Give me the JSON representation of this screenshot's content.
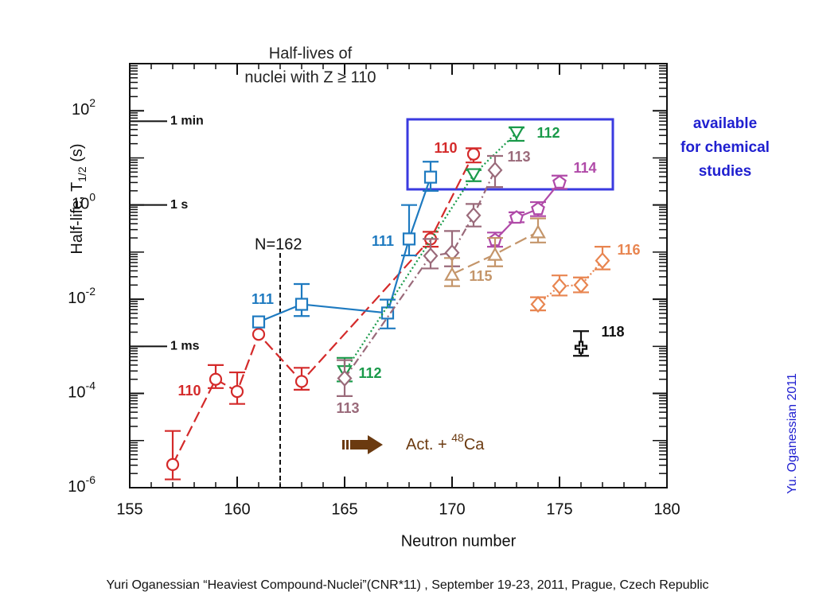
{
  "chart_data": {
    "type": "line",
    "log_y": true,
    "title": [
      "Half-lives of",
      "nuclei with Z ≥ 110"
    ],
    "x_label": "Neutron number",
    "y_label": {
      "text": "Half-life,  T",
      "sub": "1/2",
      "unit": " (s)"
    },
    "xlim": [
      155,
      180
    ],
    "xticks": [
      155,
      160,
      165,
      170,
      175,
      180
    ],
    "ylim": [
      1e-06,
      1000
    ],
    "yticks": [
      {
        "value": 1e-06,
        "label": "10",
        "exponent": "-6"
      },
      {
        "value": 0.0001,
        "label": "10",
        "exponent": "-4"
      },
      {
        "value": 0.01,
        "label": "10",
        "exponent": "-2"
      },
      {
        "value": 1,
        "label": "10",
        "exponent": "0"
      },
      {
        "value": 100,
        "label": "10",
        "exponent": "2"
      }
    ],
    "time_marks": [
      {
        "value": 60,
        "label": "1 min"
      },
      {
        "value": 1,
        "label": "1 s"
      },
      {
        "value": 0.001,
        "label": "1 ms"
      }
    ],
    "n162": {
      "x": 162,
      "label": "N=162"
    },
    "beam": {
      "text": "Act. + ",
      "sup": "48",
      "element": "Ca"
    },
    "box_label": [
      "available",
      "for chemical",
      "studies"
    ],
    "credit": "Yu. Oganessian 2011",
    "footer": "Yuri Oganessian “Heaviest Compound-Nuclei”(CNR*11) , September 19-23, 2011, Prague, Czech Republic",
    "series": [
      {
        "name": "110",
        "color": "#d42a2a",
        "marker": "circle",
        "dash": "14,6",
        "x": [
          157,
          159,
          160,
          161,
          163,
          169,
          171
        ],
        "values": [
          3.1e-06,
          0.0002,
          0.00011,
          0.0018,
          0.00018,
          0.19,
          12
        ],
        "upper": [
          1.6e-05,
          0.0004,
          0.00028,
          null,
          0.00035,
          0.27,
          16
        ],
        "lower": [
          1.5e-06,
          0.00013,
          6e-05,
          null,
          0.00012,
          0.13,
          8
        ]
      },
      {
        "name": "111",
        "color": "#1e7ac0",
        "marker": "square",
        "dash": "",
        "x": [
          161,
          163,
          167,
          168,
          169
        ],
        "values": [
          0.0033,
          0.0078,
          0.0051,
          0.19,
          3.9
        ],
        "upper": [
          null,
          0.021,
          0.0098,
          1,
          8.3
        ],
        "lower": [
          null,
          0.0044,
          0.0024,
          0.085,
          2
        ],
        "label_count": 2
      },
      {
        "name": "112",
        "color": "#1a9a4a",
        "marker": "down",
        "dash": "2,3",
        "x": [
          165,
          171,
          173
        ],
        "values": [
          0.00029,
          4.4,
          34
        ],
        "upper": [
          0.00057,
          5.5,
          44
        ],
        "lower": [
          0.00018,
          3.2,
          23
        ]
      },
      {
        "name": "113",
        "color": "#9a6a7a",
        "marker": "diamond",
        "dash": "10,4,2,4",
        "x": [
          165,
          169,
          170,
          171,
          172
        ],
        "values": [
          0.00021,
          0.083,
          0.097,
          0.6,
          5.5
        ],
        "upper": [
          0.00051,
          0.19,
          0.28,
          1.05,
          11
        ],
        "lower": [
          8.8e-05,
          0.045,
          0.05,
          0.35,
          2.4
        ]
      },
      {
        "name": "114",
        "color": "#b04aa8",
        "marker": "pentagon",
        "dash": "",
        "x": [
          172,
          173,
          174,
          175
        ],
        "values": [
          0.18,
          0.54,
          0.82,
          3
        ],
        "upper": [
          0.26,
          0.7,
          1.15,
          4.2
        ],
        "lower": [
          0.13,
          0.43,
          0.58,
          2.2
        ]
      },
      {
        "name": "115",
        "color": "#c4956a",
        "marker": "up",
        "dash": "16,6",
        "x": [
          170,
          172,
          174
        ],
        "values": [
          0.034,
          0.09,
          0.27
        ],
        "upper": [
          0.075,
          0.2,
          0.52
        ],
        "lower": [
          0.019,
          0.05,
          0.16
        ]
      },
      {
        "name": "116",
        "color": "#e88550",
        "marker": "diamond",
        "dash": "2,3",
        "x": [
          174,
          175,
          176,
          177
        ],
        "values": [
          0.0078,
          0.019,
          0.02,
          0.066
        ],
        "upper": [
          0.011,
          0.032,
          0.029,
          0.13
        ],
        "lower": [
          0.0058,
          0.012,
          0.014,
          0.043
        ]
      },
      {
        "name": "118",
        "color": "#111111",
        "marker": "cross",
        "dash": "none",
        "x": [
          176
        ],
        "values": [
          0.00095
        ],
        "upper": [
          0.0021
        ],
        "lower": [
          0.00063
        ]
      }
    ]
  }
}
